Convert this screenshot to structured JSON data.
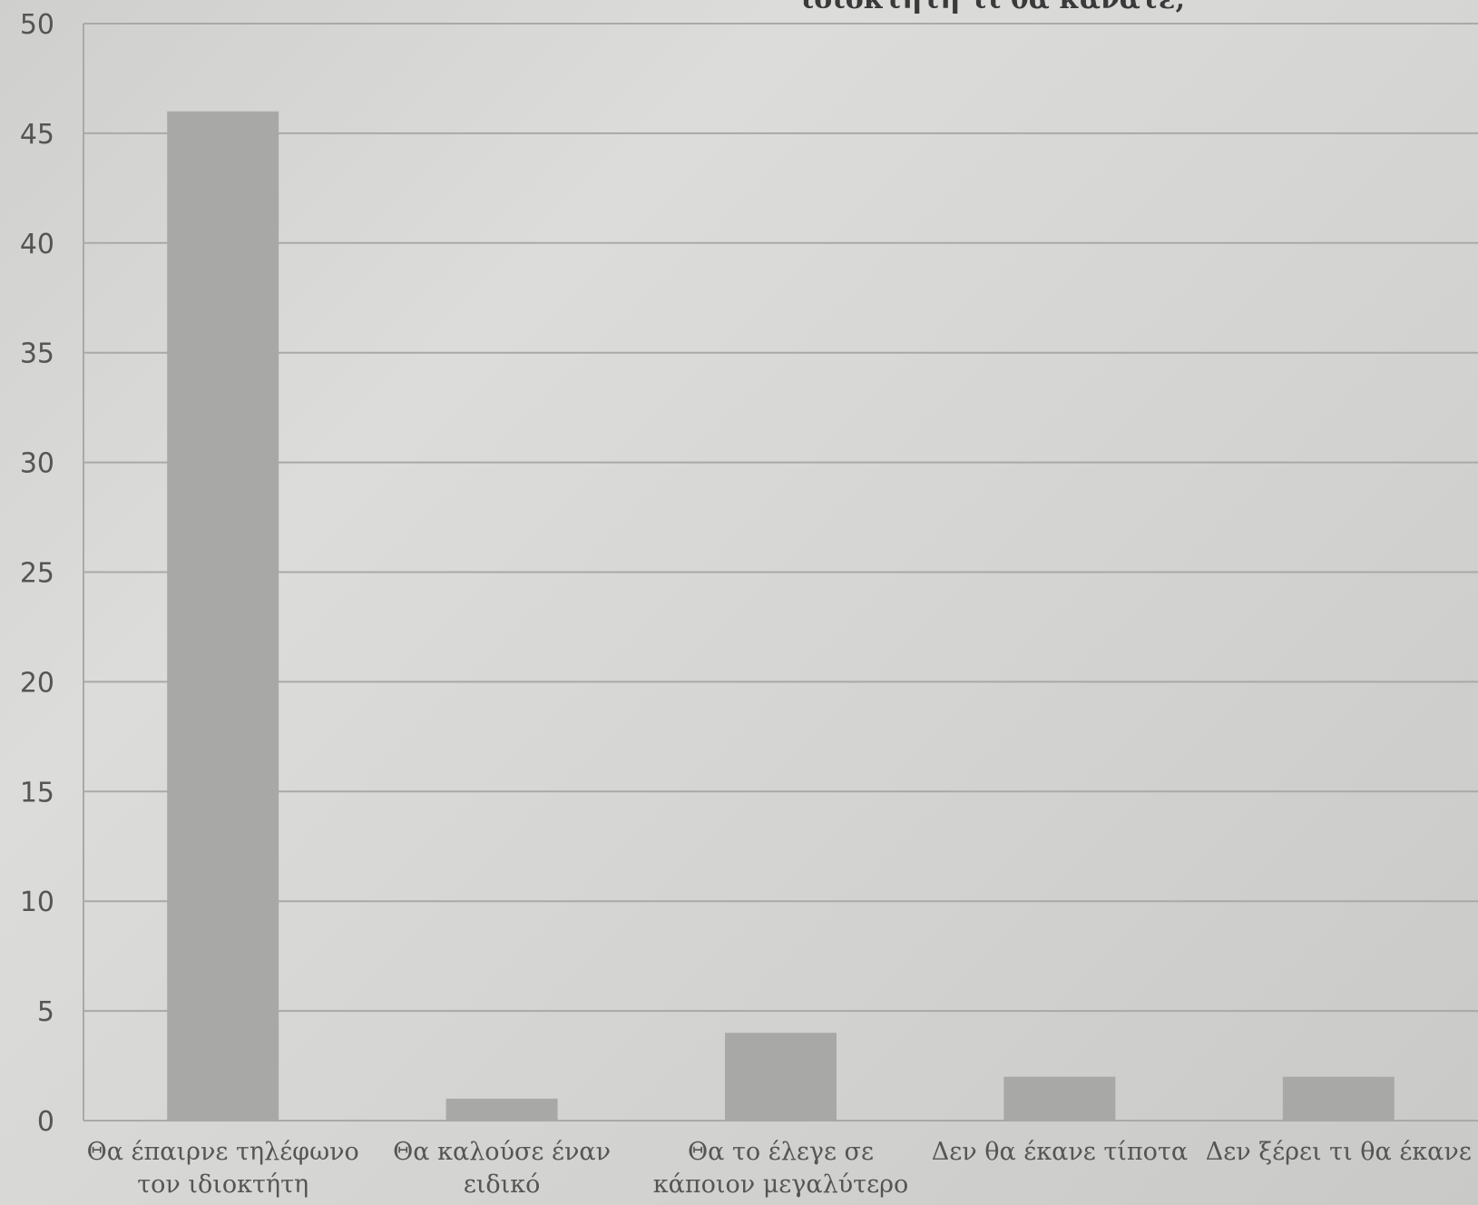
{
  "chart_data": {
    "type": "bar",
    "title_lines": [
      "ιδιοκτήτη τι θα κάνατε;"
    ],
    "categories": [
      [
        "Θα έπαιρνε τηλέφωνο",
        "τον ιδιοκτήτη"
      ],
      [
        "Θα καλούσε έναν",
        "ειδικό"
      ],
      [
        "Θα το έλεγε σε",
        "κάποιον μεγαλύτερο"
      ],
      [
        "Δεν θα έκανε τίποτα"
      ],
      [
        "Δεν ξέρει τι θα έκανε"
      ]
    ],
    "values": [
      46,
      1,
      4,
      2,
      2
    ],
    "ylim": [
      0,
      50
    ],
    "yticks": [
      0,
      5,
      10,
      15,
      20,
      25,
      30,
      35,
      40,
      45,
      50
    ],
    "grid": true,
    "legend": "none",
    "bar_color": "#a8a8a6",
    "grid_color": "#a9a9a7",
    "text_color": "#555555"
  }
}
